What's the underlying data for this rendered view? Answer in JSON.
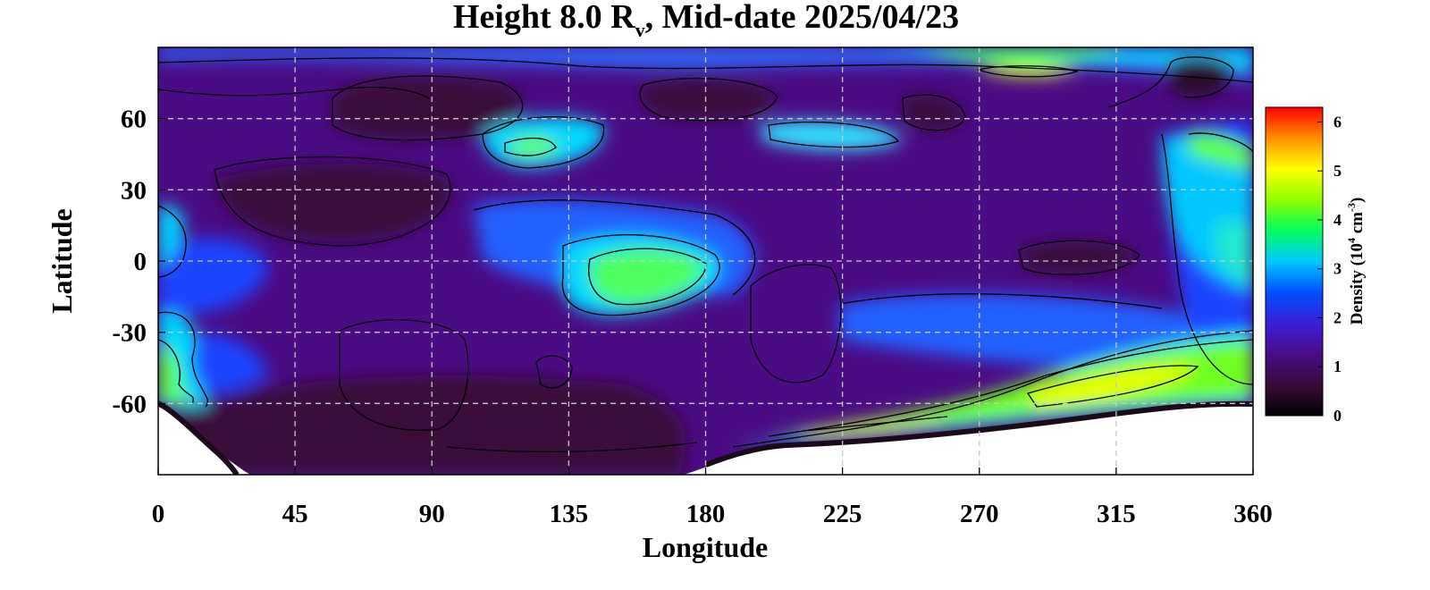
{
  "chart_data": {
    "type": "heatmap",
    "title": {
      "prefix": "Height 8.0 R",
      "subscript": "v",
      "suffix": ", Mid-date 2025/04/23"
    },
    "xlabel": "Longitude",
    "ylabel": "Latitude",
    "xlim": [
      0,
      360
    ],
    "ylim": [
      -90,
      90
    ],
    "x_ticks": [
      0,
      45,
      90,
      135,
      180,
      225,
      270,
      315,
      360
    ],
    "y_ticks": [
      60,
      30,
      0,
      -30,
      -60
    ],
    "y_tick_labels": [
      "60",
      "30",
      "0",
      "-30",
      "-60"
    ],
    "grid": true,
    "colorbar": {
      "label_prefix": "Density (10",
      "label_exp1": "4",
      "label_mid": " cm",
      "label_exp2": "-3",
      "label_suffix": ")",
      "min": 0,
      "max": 6.3,
      "ticks": [
        0,
        1,
        2,
        3,
        4,
        5,
        6
      ],
      "colors": [
        "#000000",
        "#3a0a3a",
        "#4b0b85",
        "#3a1fd8",
        "#0050ff",
        "#00c8ff",
        "#00ff60",
        "#90ff00",
        "#ffff00",
        "#ff9000",
        "#ff0000"
      ]
    },
    "contour_levels": [
      1,
      2,
      3,
      4,
      5
    ],
    "features": [
      {
        "lon": 150,
        "lat": -12,
        "density": 3.8
      },
      {
        "lon": 128,
        "lat": 46,
        "density": 3.2
      },
      {
        "lon": 305,
        "lat": -50,
        "density": 4.8
      },
      {
        "lon": 235,
        "lat": -70,
        "density": 4.5
      },
      {
        "lon": 5,
        "lat": -48,
        "density": 3.9
      },
      {
        "lon": 290,
        "lat": 78,
        "density": 4.6
      },
      {
        "lon": 345,
        "lat": 50,
        "density": 3.9
      },
      {
        "lon": 350,
        "lat": 10,
        "density": 3.0
      },
      {
        "lon": 235,
        "lat": 52,
        "density": 3.1
      },
      {
        "lon": 345,
        "lat": 77,
        "density": 0.3
      },
      {
        "lon": 60,
        "lat": 20,
        "density": 0.6
      },
      {
        "lon": 180,
        "lat": 70,
        "density": 0.6
      },
      {
        "lon": 300,
        "lat": 0,
        "density": 0.6
      }
    ]
  }
}
